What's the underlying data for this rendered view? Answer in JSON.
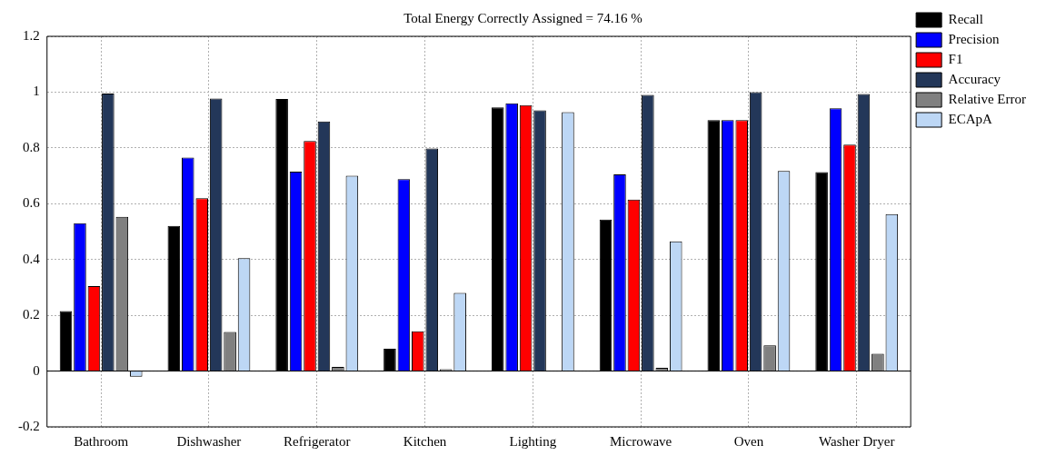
{
  "chart_data": {
    "type": "bar",
    "title": "Total Energy Correctly Assigned = 74.16 %",
    "categories": [
      "Bathroom",
      "Dishwasher",
      "Refrigerator",
      "Kitchen",
      "Lighting",
      "Microwave",
      "Oven",
      "Washer Dryer"
    ],
    "series": [
      {
        "name": "Recall",
        "color": "#000000",
        "values": [
          0.215,
          0.52,
          0.975,
          0.08,
          0.945,
          0.543,
          0.9,
          0.713
        ]
      },
      {
        "name": "Precision",
        "color": "#0000ff",
        "values": [
          0.53,
          0.765,
          0.715,
          0.688,
          0.96,
          0.705,
          0.9,
          0.942
        ]
      },
      {
        "name": "F1",
        "color": "#ff0000",
        "values": [
          0.305,
          0.62,
          0.825,
          0.143,
          0.953,
          0.615,
          0.9,
          0.812
        ]
      },
      {
        "name": "Accuracy",
        "color": "#233759",
        "values": [
          0.995,
          0.977,
          0.895,
          0.798,
          0.935,
          0.99,
          1.0,
          0.993
        ]
      },
      {
        "name": "Relative Error",
        "color": "#808080",
        "values": [
          0.553,
          0.14,
          0.015,
          0.007,
          null,
          0.012,
          0.092,
          0.062
        ]
      },
      {
        "name": "ECApA",
        "color": "#bdd7f5",
        "values": [
          -0.02,
          0.405,
          0.7,
          0.28,
          0.928,
          0.465,
          0.717,
          0.563
        ]
      }
    ],
    "ylim": [
      -0.2,
      1.2
    ],
    "yticks": [
      -0.2,
      0,
      0.2,
      0.4,
      0.6,
      0.8,
      1,
      1.2
    ],
    "ref_lines": [
      {
        "axis": "y",
        "value": 0,
        "color": "#000000"
      }
    ],
    "grid": true,
    "legend": "top right"
  }
}
